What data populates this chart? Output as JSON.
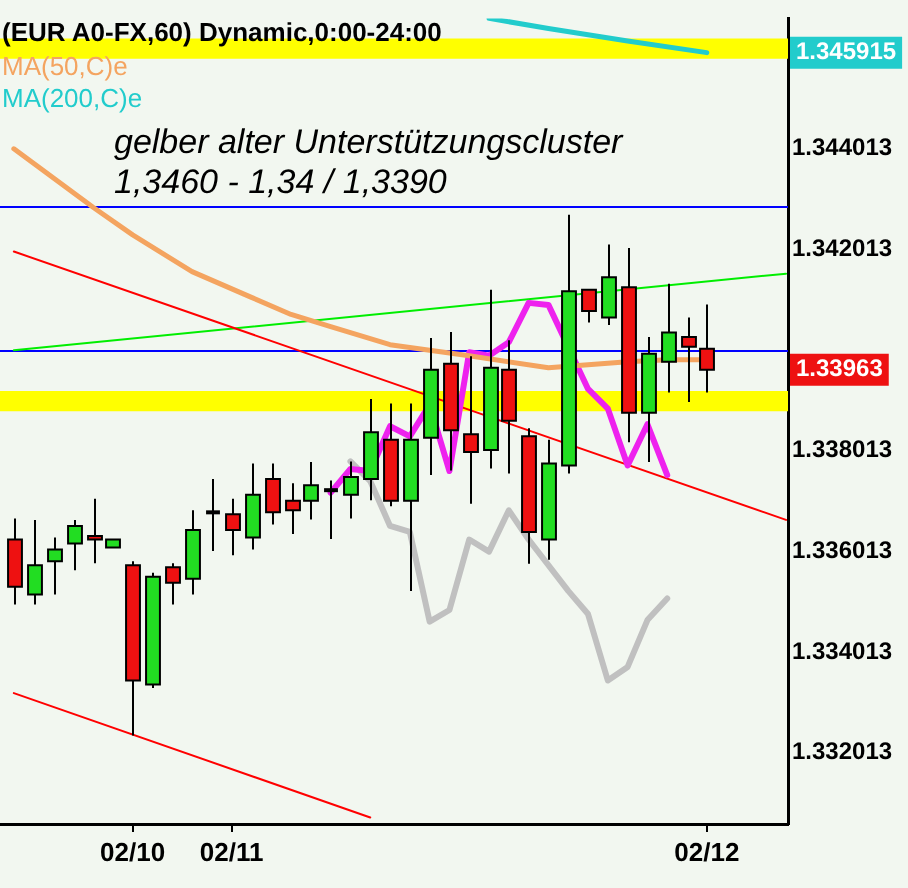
{
  "chart_data": {
    "type": "candlestick",
    "title": "(EUR A0-FX,60) Dynamic,0:00-24:00",
    "categories": [
      null,
      null,
      null,
      null,
      null,
      null,
      "02/10",
      null,
      null,
      null,
      null,
      "02/11",
      null,
      null,
      null,
      null,
      null,
      null,
      null,
      null,
      null,
      null,
      null,
      null,
      null,
      null,
      null,
      null,
      null,
      null,
      null,
      null,
      null,
      null,
      null,
      "02/12",
      null,
      null,
      null,
      null
    ],
    "ohlc": [
      [
        1.33625,
        1.33667,
        1.33496,
        1.33531
      ],
      [
        1.33516,
        1.33664,
        1.33496,
        1.33574
      ],
      [
        1.33582,
        1.33629,
        1.33516,
        1.33605
      ],
      [
        1.33617,
        1.33664,
        1.33564,
        1.33652
      ],
      [
        1.33632,
        1.33706,
        1.33578,
        1.33625
      ],
      [
        1.33609,
        1.33625,
        1.33609,
        1.33625
      ],
      [
        1.33574,
        1.33582,
        1.33236,
        1.33345
      ],
      [
        1.33337,
        1.33559,
        1.3333,
        1.33551
      ],
      [
        1.3357,
        1.33578,
        1.33496,
        1.33539
      ],
      [
        1.33547,
        1.33683,
        1.33516,
        1.33644
      ],
      [
        1.33679,
        1.33745,
        1.33602,
        1.33679
      ],
      [
        1.33675,
        1.33706,
        1.33594,
        1.33644
      ],
      [
        1.33629,
        1.33776,
        1.33605,
        1.33714
      ],
      [
        1.33745,
        1.33776,
        1.33655,
        1.33679
      ],
      [
        1.33702,
        1.33737,
        1.33636,
        1.33683
      ],
      [
        1.33702,
        1.33779,
        1.33665,
        1.33733
      ],
      [
        1.33723,
        1.33742,
        1.33626,
        1.33723
      ],
      [
        1.33714,
        1.3378,
        1.33667,
        1.33749
      ],
      [
        1.33745,
        1.33904,
        1.33703,
        1.33838
      ],
      [
        1.33823,
        1.33895,
        1.33691,
        1.33702
      ],
      [
        1.33702,
        1.33895,
        1.33523,
        1.33823
      ],
      [
        1.33827,
        1.34025,
        1.33753,
        1.33962
      ],
      [
        1.33974,
        1.34037,
        1.33762,
        1.33842
      ],
      [
        1.33834,
        1.33989,
        1.33696,
        1.33799
      ],
      [
        1.33803,
        1.34121,
        1.33766,
        1.33966
      ],
      [
        1.33962,
        1.34021,
        1.33756,
        1.33861
      ],
      [
        1.3383,
        1.33846,
        1.33577,
        1.3364
      ],
      [
        1.33625,
        1.33823,
        1.33585,
        1.33776
      ],
      [
        1.33772,
        1.3427,
        1.33756,
        1.34118
      ],
      [
        1.34121,
        1.34121,
        1.34056,
        1.34079
      ],
      [
        1.34066,
        1.34211,
        1.34051,
        1.34146
      ],
      [
        1.34126,
        1.34204,
        1.33818,
        1.33877
      ],
      [
        1.33877,
        1.34027,
        1.33779,
        1.33994
      ],
      [
        1.33978,
        1.34133,
        1.33917,
        1.34036
      ],
      [
        1.34027,
        1.34066,
        1.33898,
        1.34008
      ],
      [
        1.34004,
        1.34092,
        1.33917,
        1.33962
      ],
      null,
      null,
      null,
      null
    ],
    "colors": [
      "#ee1111",
      "#22dd22",
      "#22dd22",
      "#22dd22",
      "#ee1111",
      "#22dd22",
      "#ee1111",
      "#22dd22",
      "#ee1111",
      "#22dd22",
      "#000000",
      "#ee1111",
      "#22dd22",
      "#ee1111",
      "#ee1111",
      "#22dd22",
      "#000000",
      "#22dd22",
      "#22dd22",
      "#ee1111",
      "#22dd22",
      "#22dd22",
      "#ee1111",
      "#ee1111",
      "#22dd22",
      "#ee1111",
      "#ee1111",
      "#22dd22",
      "#22dd22",
      "#ee1111",
      "#22dd22",
      "#ee1111",
      "#22dd22",
      "#22dd22",
      "#ee1111",
      "#ee1111",
      null,
      null,
      null,
      null
    ],
    "series": [
      {
        "type": "line",
        "name": "MA(50,C)e",
        "color": "#f4a460",
        "values": [
          1.34401,
          null,
          null,
          null,
          1.34285,
          null,
          1.3423,
          null,
          null,
          1.34157,
          null,
          null,
          1.34106,
          null,
          1.34072,
          null,
          1.34048,
          null,
          null,
          1.34012,
          null,
          null,
          null,
          1.3399,
          null,
          null,
          null,
          1.33966,
          null,
          1.33972,
          null,
          1.33978,
          null,
          1.33982,
          null,
          1.33982,
          null,
          null,
          null,
          null
        ]
      },
      {
        "type": "line",
        "name": "MA(200,C)e",
        "color": "#22cccc",
        "values": [
          null,
          null,
          null,
          null,
          null,
          null,
          null,
          null,
          null,
          null,
          null,
          null,
          null,
          null,
          null,
          null,
          null,
          null,
          null,
          null,
          null,
          null,
          null,
          null,
          1.3466,
          null,
          null,
          1.3464,
          null,
          null,
          null,
          1.34615,
          null,
          null,
          null,
          1.34592,
          null,
          null,
          null,
          null
        ]
      },
      {
        "type": "line",
        "color": "#ee22ee",
        "values": [
          null,
          null,
          null,
          null,
          null,
          null,
          null,
          null,
          null,
          null,
          null,
          null,
          null,
          null,
          null,
          null,
          1.33718,
          1.33765,
          1.33761,
          1.3385,
          1.3383,
          1.33893,
          1.33761,
          1.33997,
          1.3399,
          1.34017,
          1.34095,
          1.34091,
          null,
          1.33924,
          1.33885,
          1.33772,
          1.33854,
          1.33753,
          null,
          null,
          null,
          null,
          null,
          null
        ]
      },
      {
        "type": "line",
        "color": "#c0c0c0",
        "values": [
          null,
          null,
          null,
          null,
          null,
          null,
          null,
          null,
          null,
          null,
          null,
          null,
          null,
          null,
          null,
          null,
          null,
          1.3378,
          1.33741,
          1.33652,
          1.3364,
          1.33462,
          1.33485,
          1.33625,
          1.33601,
          1.33683,
          1.33625,
          null,
          1.33523,
          1.33477,
          1.33345,
          1.33372,
          1.33465,
          1.33508,
          null,
          null,
          null,
          null,
          null,
          null
        ]
      },
      {
        "type": "line",
        "color": "#ff0000",
        "values": [
          1.34197,
          null,
          null,
          null,
          null,
          null,
          null,
          null,
          null,
          null,
          null,
          null,
          null,
          null,
          null,
          null,
          null,
          null,
          null,
          null,
          null,
          null,
          null,
          null,
          null,
          null,
          null,
          null,
          null,
          null,
          null,
          null,
          null,
          null,
          null,
          null,
          null,
          null,
          null,
          1.33664
        ]
      },
      {
        "type": "line",
        "color": "#ff0000",
        "values": [
          1.3332,
          null,
          null,
          null,
          null,
          null,
          null,
          null,
          null,
          null,
          null,
          null,
          null,
          null,
          null,
          null,
          null,
          null,
          1.33073,
          null,
          null,
          null,
          null,
          null,
          null,
          null,
          null,
          null,
          null,
          null,
          null,
          null,
          null,
          null,
          null,
          null,
          null,
          null,
          null,
          null
        ]
      },
      {
        "type": "line",
        "color": "#00ee00",
        "values": [
          1.34001,
          null,
          null,
          null,
          null,
          null,
          null,
          null,
          null,
          null,
          null,
          null,
          null,
          null,
          null,
          null,
          null,
          null,
          null,
          null,
          null,
          null,
          null,
          null,
          null,
          null,
          null,
          null,
          null,
          null,
          null,
          null,
          null,
          null,
          null,
          null,
          null,
          null,
          null,
          1.34153
        ]
      }
    ],
    "ref_lines": [
      {
        "axis": "y",
        "value": 1.34289,
        "color": "#0000ff"
      },
      {
        "axis": "y",
        "value": 1.34,
        "color": "#0000ff"
      }
    ],
    "bands": [
      {
        "axis": "y",
        "from": 1.3458,
        "to": 1.3462,
        "color": "#ffff00"
      },
      {
        "axis": "y",
        "from": 1.3388,
        "to": 1.3392,
        "color": "#ffff00"
      }
    ],
    "annotations": [
      "gelber alter Unterstützungscluster",
      "1,3460 - 1,34 / 1,3390",
      "1.345915",
      "1.33963"
    ],
    "ylim": [
      1.3306,
      1.3466
    ],
    "yticks": [
      1.332013,
      1.334013,
      1.336013,
      1.338013,
      1.342013,
      1.344013
    ],
    "legend": "top left",
    "grid": false,
    "marker": "none",
    "line_style": "solid"
  }
}
